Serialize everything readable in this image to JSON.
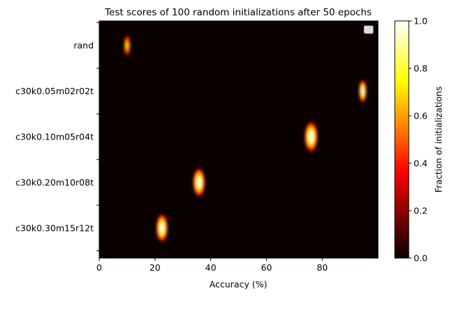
{
  "chart_data": {
    "type": "heatmap",
    "title": "Test scores of 100 random initializations after 50 epochs",
    "xlabel": "Accuracy (%)",
    "ylabel": "",
    "xlim": [
      0,
      100
    ],
    "x_ticks": [
      0,
      20,
      40,
      60,
      80
    ],
    "categories": [
      "rand",
      "c30k0.05m02r02t",
      "c30k0.10m05r04t",
      "c30k0.20m10r08t",
      "c30k0.30m15r12t"
    ],
    "series": [
      {
        "category": "rand",
        "center_accuracy": 10,
        "peak_fraction": 0.75,
        "spread": 0.35
      },
      {
        "category": "c30k0.05m02r02t",
        "center_accuracy": 94.5,
        "peak_fraction": 1.0,
        "spread": 0.5
      },
      {
        "category": "c30k0.10m05r04t",
        "center_accuracy": 76,
        "peak_fraction": 1.0,
        "spread": 1.2
      },
      {
        "category": "c30k0.20m10r08t",
        "center_accuracy": 35.8,
        "peak_fraction": 1.0,
        "spread": 1.05
      },
      {
        "category": "c30k0.30m15r12t",
        "center_accuracy": 22.5,
        "peak_fraction": 1.0,
        "spread": 1.0
      }
    ],
    "colorbar": {
      "label": "Fraction of initializations",
      "range": [
        0,
        1
      ],
      "ticks": [
        "0.0",
        "0.2",
        "0.4",
        "0.6",
        "0.8",
        "1.0"
      ],
      "colormap": "hot"
    },
    "legend": {
      "position": "top-right",
      "entries": []
    },
    "grid": false
  }
}
